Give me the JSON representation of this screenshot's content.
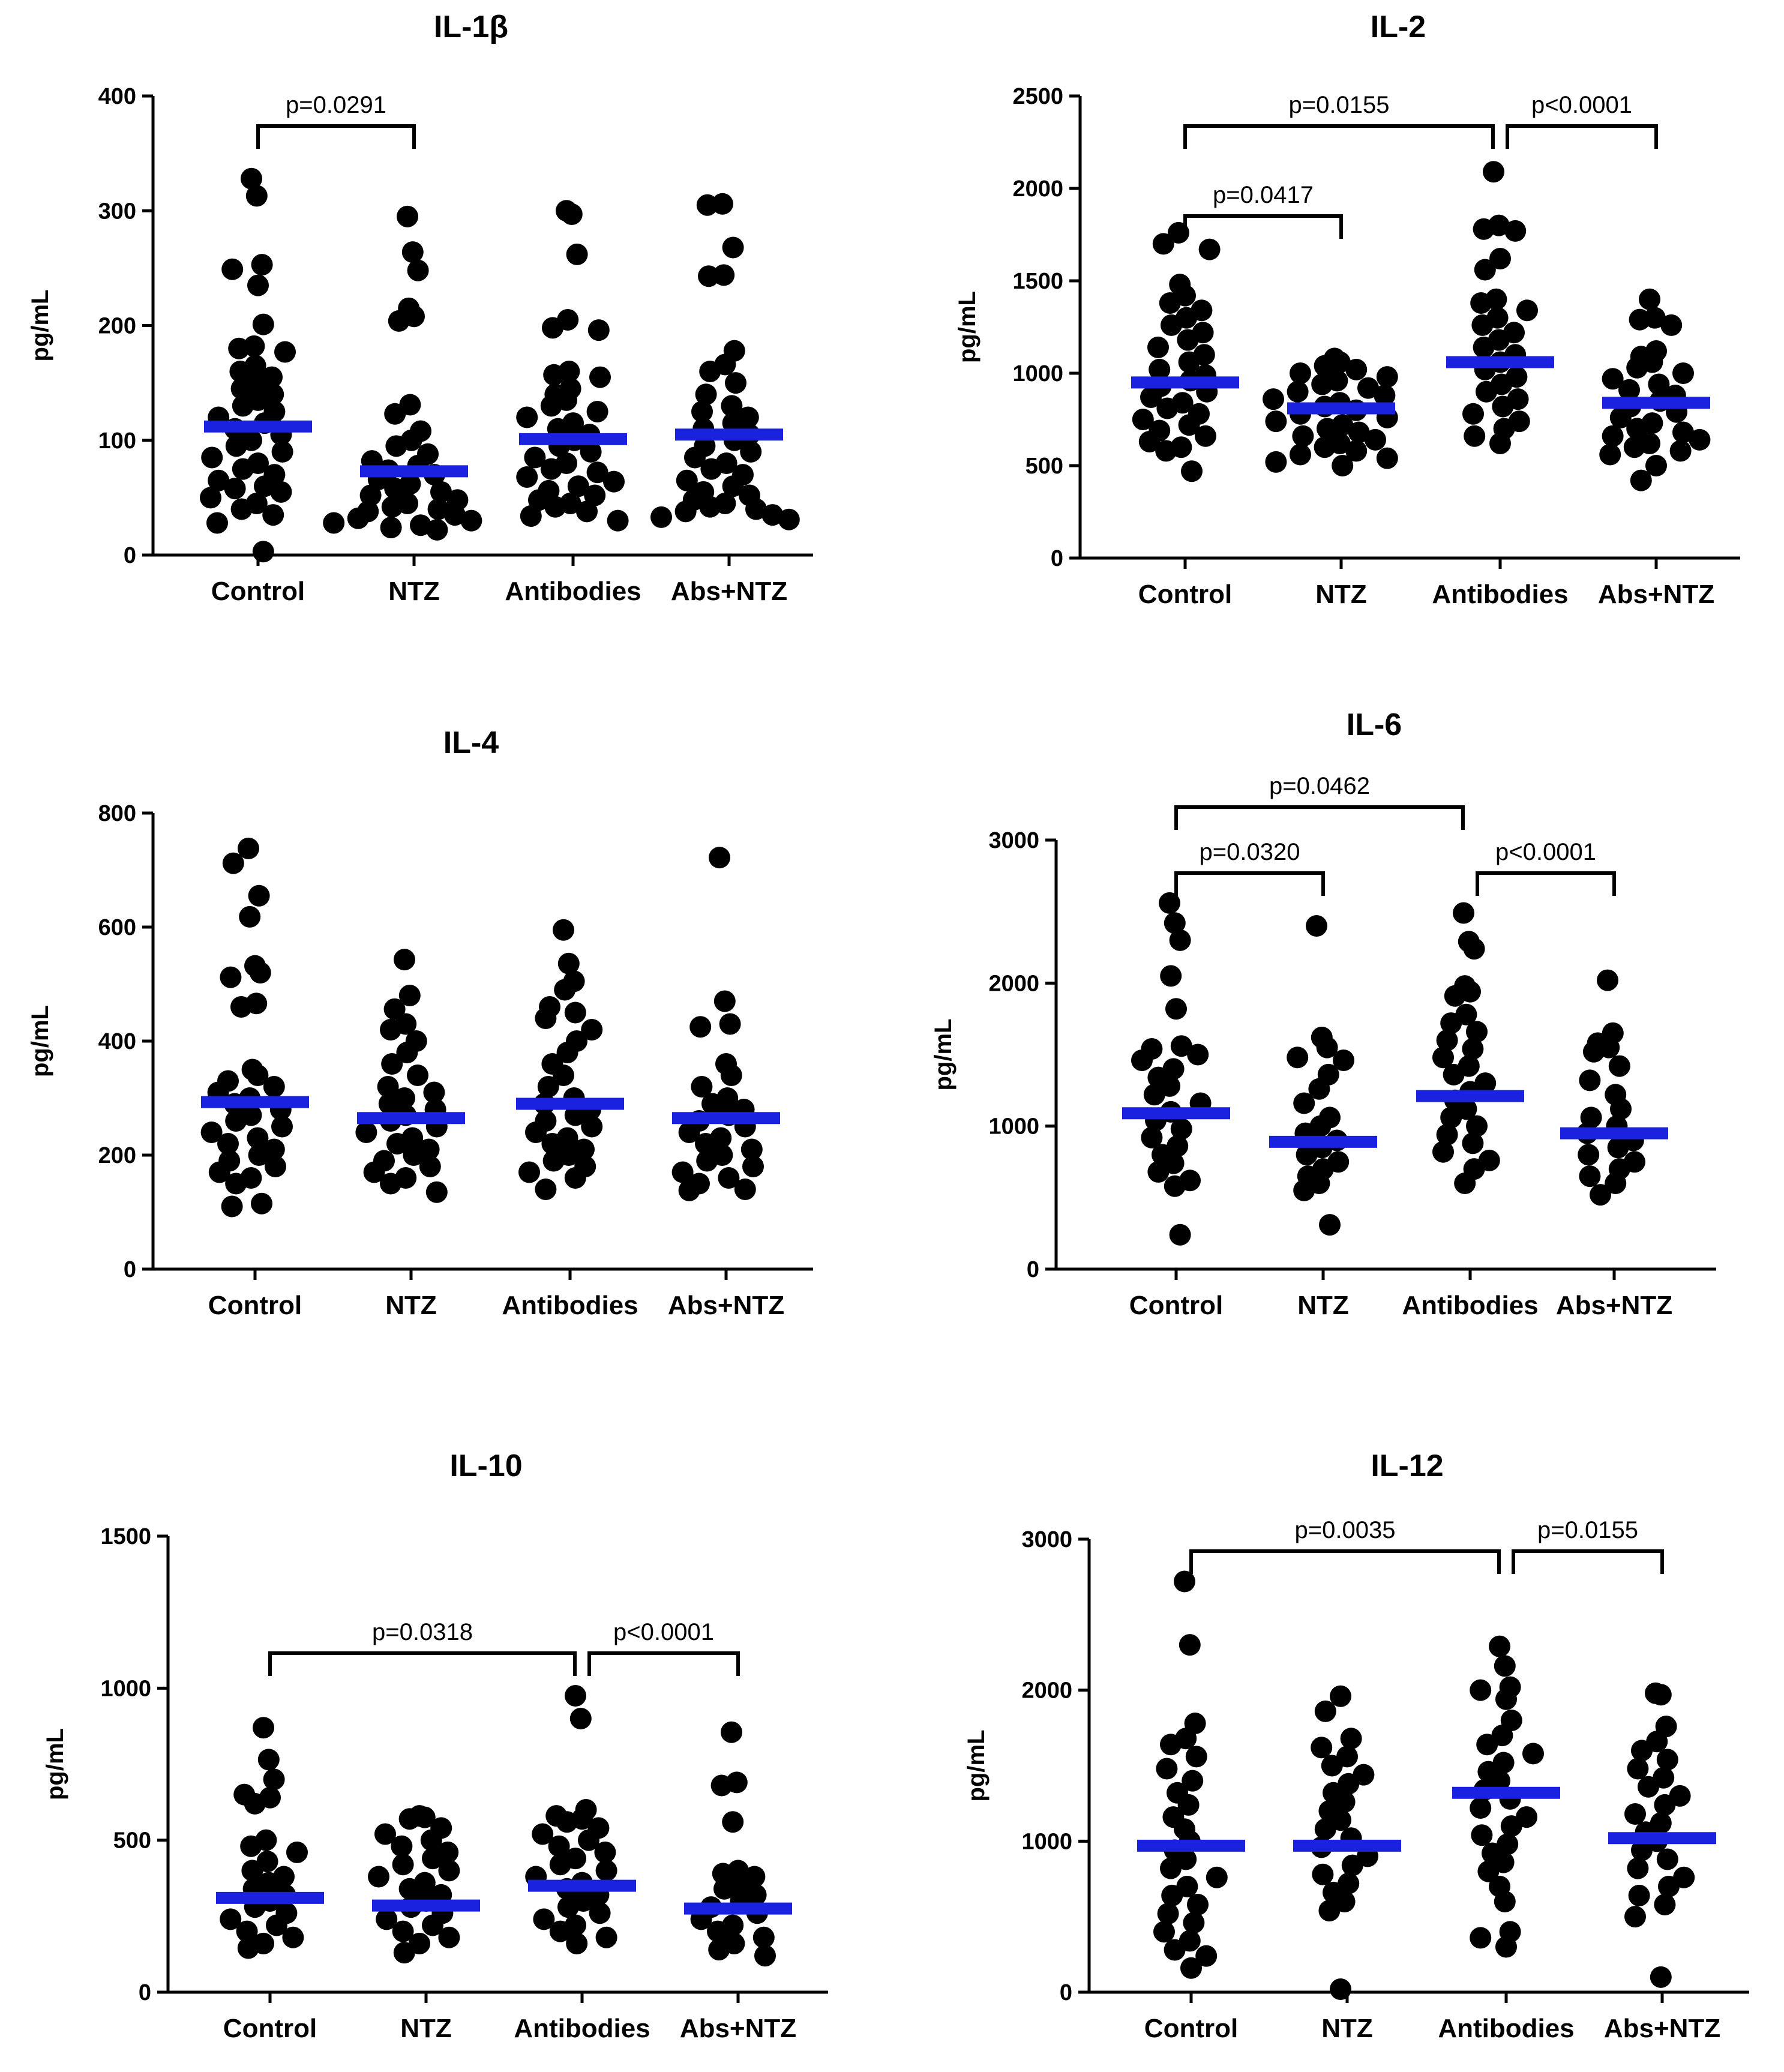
{
  "figure": {
    "groups": [
      "Control",
      "NTZ",
      "Antibodies",
      "Abs+NTZ"
    ],
    "y_unit": "pg/mL",
    "colors": {
      "mean_line": "#1a22e0",
      "points": "#000000"
    }
  },
  "chart_data": [
    {
      "type": "scatter",
      "title": "IL-1β",
      "ylabel": "pg/mL",
      "categories": [
        "Control",
        "NTZ",
        "Antibodies",
        "Abs+NTZ"
      ],
      "ylim": [
        0,
        400
      ],
      "yticks": [
        "0",
        "100",
        "200",
        "300",
        "400"
      ],
      "means": [
        112,
        73,
        101,
        105
      ],
      "series": [
        {
          "name": "Control",
          "values": [
            328,
            313,
            253,
            249,
            235,
            201,
            182,
            180,
            177,
            165,
            160,
            155,
            150,
            145,
            140,
            135,
            130,
            125,
            120,
            115,
            110,
            105,
            100,
            95,
            90,
            85,
            80,
            75,
            70,
            65,
            60,
            58,
            55,
            50,
            45,
            40,
            35,
            28,
            3
          ]
        },
        {
          "name": "NTZ",
          "values": [
            295,
            264,
            248,
            215,
            208,
            204,
            131,
            123,
            108,
            100,
            95,
            88,
            82,
            78,
            74,
            70,
            66,
            62,
            58,
            55,
            52,
            48,
            45,
            42,
            40,
            38,
            35,
            32,
            30,
            28,
            26,
            24,
            22
          ]
        },
        {
          "name": "Antibodies",
          "values": [
            300,
            297,
            262,
            205,
            198,
            196,
            160,
            157,
            155,
            145,
            140,
            135,
            130,
            125,
            120,
            115,
            110,
            105,
            100,
            95,
            90,
            85,
            80,
            75,
            72,
            68,
            64,
            60,
            56,
            52,
            48,
            45,
            42,
            38,
            34,
            30
          ]
        },
        {
          "name": "Abs+NTZ",
          "values": [
            306,
            305,
            268,
            244,
            243,
            178,
            166,
            160,
            150,
            140,
            130,
            125,
            120,
            115,
            110,
            105,
            100,
            95,
            90,
            85,
            80,
            75,
            70,
            65,
            60,
            55,
            52,
            48,
            45,
            42,
            40,
            38,
            35,
            33,
            31
          ]
        }
      ],
      "comparisons": [
        {
          "from": "Control",
          "to": "NTZ",
          "label": "p=0.0291",
          "level": 1
        }
      ]
    },
    {
      "type": "scatter",
      "title": "IL-2",
      "ylabel": "pg/mL",
      "categories": [
        "Control",
        "NTZ",
        "Antibodies",
        "Abs+NTZ"
      ],
      "ylim": [
        0,
        2500
      ],
      "yticks": [
        "0",
        "500",
        "1000",
        "1500",
        "2000",
        "2500"
      ],
      "means": [
        950,
        810,
        1060,
        840
      ],
      "series": [
        {
          "name": "Control",
          "values": [
            1760,
            1700,
            1670,
            1480,
            1420,
            1380,
            1340,
            1300,
            1260,
            1220,
            1180,
            1140,
            1100,
            1060,
            1020,
            990,
            960,
            930,
            900,
            870,
            840,
            810,
            780,
            750,
            720,
            690,
            660,
            630,
            600,
            580,
            470
          ]
        },
        {
          "name": "NTZ",
          "values": [
            1080,
            1060,
            1040,
            1020,
            1000,
            980,
            960,
            940,
            920,
            900,
            880,
            860,
            840,
            820,
            800,
            780,
            760,
            740,
            720,
            700,
            680,
            660,
            640,
            620,
            600,
            580,
            560,
            540,
            520,
            500
          ]
        },
        {
          "name": "Antibodies",
          "values": [
            2090,
            1800,
            1780,
            1770,
            1620,
            1560,
            1400,
            1380,
            1340,
            1300,
            1260,
            1220,
            1180,
            1140,
            1100,
            1060,
            1020,
            980,
            940,
            900,
            860,
            820,
            780,
            740,
            700,
            660,
            620
          ]
        },
        {
          "name": "Abs+NTZ",
          "values": [
            1400,
            1300,
            1290,
            1260,
            1120,
            1090,
            1060,
            1030,
            1000,
            970,
            940,
            910,
            880,
            850,
            820,
            790,
            760,
            730,
            700,
            680,
            660,
            640,
            620,
            600,
            580,
            560,
            500,
            420
          ]
        }
      ],
      "comparisons": [
        {
          "from": "Control",
          "to": "NTZ",
          "label": "p=0.0417",
          "level": 1
        },
        {
          "from": "Control",
          "to": "Antibodies",
          "label": "p=0.0155",
          "level": 2
        },
        {
          "from": "Antibodies",
          "to": "Abs+NTZ",
          "label": "p<0.0001",
          "level": 2
        }
      ]
    },
    {
      "type": "scatter",
      "title": "IL-4",
      "ylabel": "pg/mL",
      "categories": [
        "Control",
        "NTZ",
        "Antibodies",
        "Abs+NTZ"
      ],
      "ylim": [
        0,
        800
      ],
      "yticks": [
        "0",
        "200",
        "400",
        "600",
        "800"
      ],
      "means": [
        293,
        265,
        290,
        265
      ],
      "series": [
        {
          "name": "Control",
          "values": [
            738,
            712,
            655,
            618,
            532,
            520,
            512,
            466,
            460,
            350,
            340,
            330,
            320,
            310,
            300,
            290,
            280,
            270,
            260,
            250,
            240,
            230,
            220,
            210,
            200,
            190,
            180,
            170,
            160,
            150,
            115,
            110
          ]
        },
        {
          "name": "NTZ",
          "values": [
            543,
            480,
            456,
            430,
            420,
            400,
            380,
            360,
            340,
            320,
            310,
            300,
            290,
            280,
            270,
            260,
            250,
            240,
            230,
            220,
            210,
            200,
            190,
            180,
            170,
            160,
            150,
            135
          ]
        },
        {
          "name": "Antibodies",
          "values": [
            595,
            536,
            505,
            490,
            460,
            450,
            440,
            420,
            400,
            380,
            360,
            340,
            320,
            300,
            290,
            280,
            270,
            260,
            250,
            240,
            230,
            220,
            210,
            200,
            190,
            180,
            170,
            160,
            140
          ]
        },
        {
          "name": "Abs+NTZ",
          "values": [
            722,
            470,
            430,
            425,
            360,
            340,
            320,
            300,
            290,
            280,
            270,
            260,
            250,
            240,
            230,
            220,
            210,
            200,
            190,
            180,
            170,
            160,
            150,
            140,
            138
          ]
        }
      ],
      "comparisons": []
    },
    {
      "type": "scatter",
      "title": "IL-6",
      "ylabel": "pg/mL",
      "categories": [
        "Control",
        "NTZ",
        "Antibodies",
        "Abs+NTZ"
      ],
      "ylim": [
        0,
        3000
      ],
      "yticks": [
        "0",
        "1000",
        "2000",
        "3000"
      ],
      "means": [
        1090,
        890,
        1210,
        950
      ],
      "series": [
        {
          "name": "Control",
          "values": [
            2560,
            2420,
            2300,
            2050,
            1820,
            1560,
            1540,
            1500,
            1460,
            1400,
            1340,
            1280,
            1220,
            1160,
            1100,
            1040,
            980,
            920,
            860,
            800,
            740,
            680,
            620,
            580,
            240
          ]
        },
        {
          "name": "NTZ",
          "values": [
            2400,
            1620,
            1550,
            1480,
            1460,
            1360,
            1260,
            1160,
            1060,
            1000,
            950,
            900,
            850,
            800,
            750,
            700,
            650,
            600,
            550,
            310
          ]
        },
        {
          "name": "Antibodies",
          "values": [
            2490,
            2290,
            2240,
            1980,
            1940,
            1910,
            1780,
            1720,
            1660,
            1600,
            1540,
            1480,
            1420,
            1360,
            1300,
            1240,
            1180,
            1120,
            1060,
            1000,
            940,
            880,
            820,
            760,
            700,
            600
          ]
        },
        {
          "name": "Abs+NTZ",
          "values": [
            2020,
            1650,
            1580,
            1550,
            1520,
            1420,
            1320,
            1220,
            1120,
            1060,
            1000,
            950,
            900,
            850,
            800,
            750,
            700,
            650,
            600,
            520
          ]
        }
      ],
      "comparisons": [
        {
          "from": "Control",
          "to": "NTZ",
          "label": "p=0.0320",
          "level": 1
        },
        {
          "from": "Control",
          "to": "Antibodies",
          "label": "p=0.0462",
          "level": 2
        },
        {
          "from": "Antibodies",
          "to": "Abs+NTZ",
          "label": "p<0.0001",
          "level": 1
        }
      ]
    },
    {
      "type": "scatter",
      "title": "IL-10",
      "ylabel": "pg/mL",
      "categories": [
        "Control",
        "NTZ",
        "Antibodies",
        "Abs+NTZ"
      ],
      "ylim": [
        0,
        1500
      ],
      "yticks": [
        "0",
        "500",
        "1000",
        "1500"
      ],
      "means": [
        310,
        285,
        350,
        275
      ],
      "series": [
        {
          "name": "Control",
          "values": [
            870,
            765,
            700,
            650,
            640,
            620,
            500,
            480,
            460,
            430,
            400,
            380,
            360,
            340,
            320,
            300,
            280,
            260,
            240,
            220,
            200,
            180,
            160,
            145
          ]
        },
        {
          "name": "NTZ",
          "values": [
            580,
            575,
            570,
            540,
            520,
            500,
            480,
            460,
            440,
            420,
            400,
            380,
            360,
            340,
            320,
            300,
            280,
            260,
            240,
            220,
            200,
            180,
            160,
            130
          ]
        },
        {
          "name": "Antibodies",
          "values": [
            975,
            900,
            600,
            580,
            570,
            560,
            540,
            520,
            500,
            480,
            460,
            440,
            420,
            400,
            380,
            360,
            340,
            320,
            300,
            280,
            260,
            240,
            220,
            200,
            180,
            160
          ]
        },
        {
          "name": "Abs+NTZ",
          "values": [
            855,
            690,
            680,
            560,
            400,
            390,
            380,
            360,
            340,
            320,
            300,
            280,
            260,
            240,
            220,
            200,
            180,
            160,
            140,
            120
          ]
        }
      ],
      "comparisons": [
        {
          "from": "Control",
          "to": "Antibodies",
          "label": "p=0.0318",
          "level": 1
        },
        {
          "from": "Antibodies",
          "to": "Abs+NTZ",
          "label": "p<0.0001",
          "level": 1
        }
      ]
    },
    {
      "type": "scatter",
      "title": "IL-12",
      "ylabel": "pg/mL",
      "categories": [
        "Control",
        "NTZ",
        "Antibodies",
        "Abs+NTZ"
      ],
      "ylim": [
        0,
        3000
      ],
      "yticks": [
        "0",
        "1000",
        "2000",
        "3000"
      ],
      "means": [
        970,
        970,
        1320,
        1020
      ],
      "series": [
        {
          "name": "Control",
          "values": [
            2720,
            2300,
            1780,
            1680,
            1640,
            1560,
            1480,
            1400,
            1320,
            1240,
            1160,
            1080,
            1000,
            940,
            880,
            820,
            760,
            700,
            640,
            580,
            520,
            460,
            400,
            340,
            280,
            240,
            160
          ]
        },
        {
          "name": "NTZ",
          "values": [
            1960,
            1860,
            1680,
            1620,
            1560,
            1500,
            1440,
            1380,
            1320,
            1260,
            1200,
            1140,
            1080,
            1020,
            960,
            900,
            840,
            780,
            720,
            660,
            600,
            540,
            20
          ]
        },
        {
          "name": "Antibodies",
          "values": [
            2290,
            2160,
            2020,
            2000,
            1940,
            1800,
            1700,
            1640,
            1580,
            1520,
            1460,
            1400,
            1340,
            1280,
            1220,
            1160,
            1100,
            1040,
            980,
            920,
            860,
            800,
            700,
            600,
            400,
            360,
            300
          ]
        },
        {
          "name": "Abs+NTZ",
          "values": [
            1980,
            1970,
            1760,
            1660,
            1600,
            1540,
            1480,
            1420,
            1360,
            1300,
            1240,
            1180,
            1120,
            1060,
            1000,
            940,
            880,
            820,
            760,
            700,
            640,
            580,
            500,
            100
          ]
        }
      ],
      "comparisons": [
        {
          "from": "Control",
          "to": "Antibodies",
          "label": "p=0.0035",
          "level": 1
        },
        {
          "from": "Antibodies",
          "to": "Abs+NTZ",
          "label": "p=0.0155",
          "level": 1
        }
      ]
    }
  ]
}
